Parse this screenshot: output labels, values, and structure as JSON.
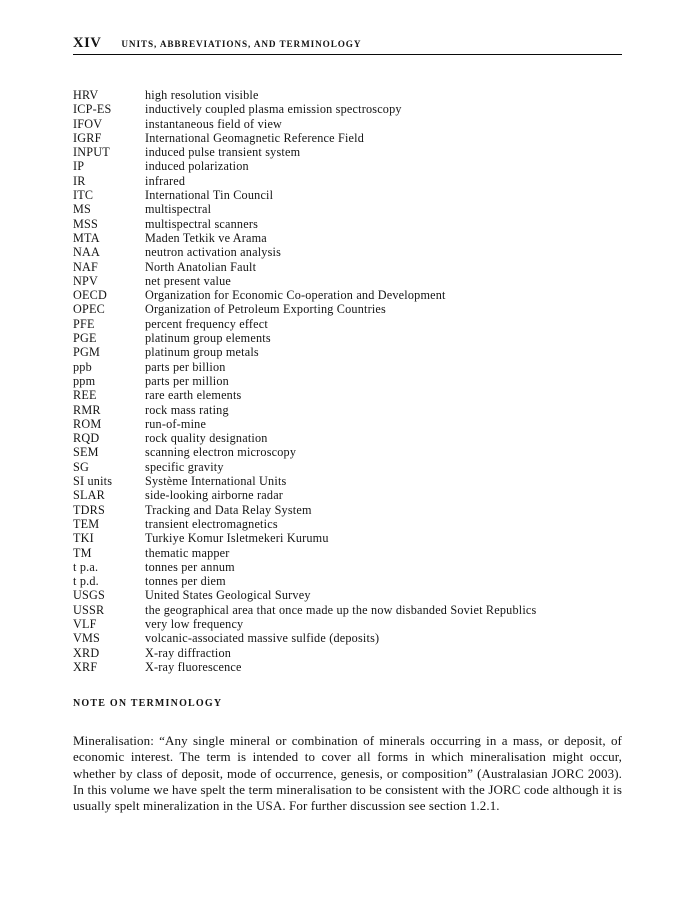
{
  "page": {
    "number": "XIV",
    "running_head": "UNITS, ABBREVIATIONS, AND TERMINOLOGY"
  },
  "abbreviations": [
    {
      "abbr": "HRV",
      "definition": "high resolution visible"
    },
    {
      "abbr": "ICP-ES",
      "definition": "inductively coupled plasma emission spectroscopy"
    },
    {
      "abbr": "IFOV",
      "definition": "instantaneous field of view"
    },
    {
      "abbr": "IGRF",
      "definition": "International Geomagnetic Reference Field"
    },
    {
      "abbr": "INPUT",
      "definition": "induced pulse transient system"
    },
    {
      "abbr": "IP",
      "definition": "induced polarization"
    },
    {
      "abbr": "IR",
      "definition": "infrared"
    },
    {
      "abbr": "ITC",
      "definition": "International Tin Council"
    },
    {
      "abbr": "MS",
      "definition": "multispectral"
    },
    {
      "abbr": "MSS",
      "definition": "multispectral scanners"
    },
    {
      "abbr": "MTA",
      "definition": "Maden Tetkik ve Arama"
    },
    {
      "abbr": "NAA",
      "definition": "neutron activation analysis"
    },
    {
      "abbr": "NAF",
      "definition": "North Anatolian Fault"
    },
    {
      "abbr": "NPV",
      "definition": "net present value"
    },
    {
      "abbr": "OECD",
      "definition": "Organization for Economic Co-operation and Development"
    },
    {
      "abbr": "OPEC",
      "definition": "Organization of Petroleum Exporting Countries"
    },
    {
      "abbr": "PFE",
      "definition": "percent frequency effect"
    },
    {
      "abbr": "PGE",
      "definition": "platinum group elements"
    },
    {
      "abbr": "PGM",
      "definition": "platinum group metals"
    },
    {
      "abbr": "ppb",
      "definition": "parts per billion"
    },
    {
      "abbr": "ppm",
      "definition": "parts per million"
    },
    {
      "abbr": "REE",
      "definition": "rare earth elements"
    },
    {
      "abbr": "RMR",
      "definition": "rock mass rating"
    },
    {
      "abbr": "ROM",
      "definition": "run-of-mine"
    },
    {
      "abbr": "RQD",
      "definition": "rock quality designation"
    },
    {
      "abbr": "SEM",
      "definition": "scanning electron microscopy"
    },
    {
      "abbr": "SG",
      "definition": "specific gravity"
    },
    {
      "abbr": "SI units",
      "definition": "Système International Units"
    },
    {
      "abbr": "SLAR",
      "definition": "side-looking airborne radar"
    },
    {
      "abbr": "TDRS",
      "definition": "Tracking and Data Relay System"
    },
    {
      "abbr": "TEM",
      "definition": "transient electromagnetics"
    },
    {
      "abbr": "TKI",
      "definition": "Turkiye Komur Isletmekeri Kurumu"
    },
    {
      "abbr": "TM",
      "definition": "thematic mapper"
    },
    {
      "abbr": "t p.a.",
      "definition": "tonnes per annum"
    },
    {
      "abbr": "t p.d.",
      "definition": "tonnes per diem"
    },
    {
      "abbr": "USGS",
      "definition": "United States Geological Survey"
    },
    {
      "abbr": "USSR",
      "definition": "the geographical area that once made up the now disbanded Soviet Republics"
    },
    {
      "abbr": "VLF",
      "definition": "very low frequency"
    },
    {
      "abbr": "VMS",
      "definition": "volcanic-associated massive sulfide (deposits)"
    },
    {
      "abbr": "XRD",
      "definition": "X-ray diffraction"
    },
    {
      "abbr": "XRF",
      "definition": "X-ray fluorescence"
    }
  ],
  "note": {
    "heading": "NOTE ON TERMINOLOGY",
    "paragraph": "Mineralisation: “Any single mineral or combination of minerals occurring in a mass, or deposit, of economic interest. The term is intended to cover all forms in which mineralisation might occur, whether by class of deposit, mode of occurrence, genesis, or composition” (Australasian JORC 2003). In this volume we have spelt the term mineralisation to be consistent with the JORC code although it is usually spelt mineralization in the USA. For further discussion see section 1.2.1."
  }
}
